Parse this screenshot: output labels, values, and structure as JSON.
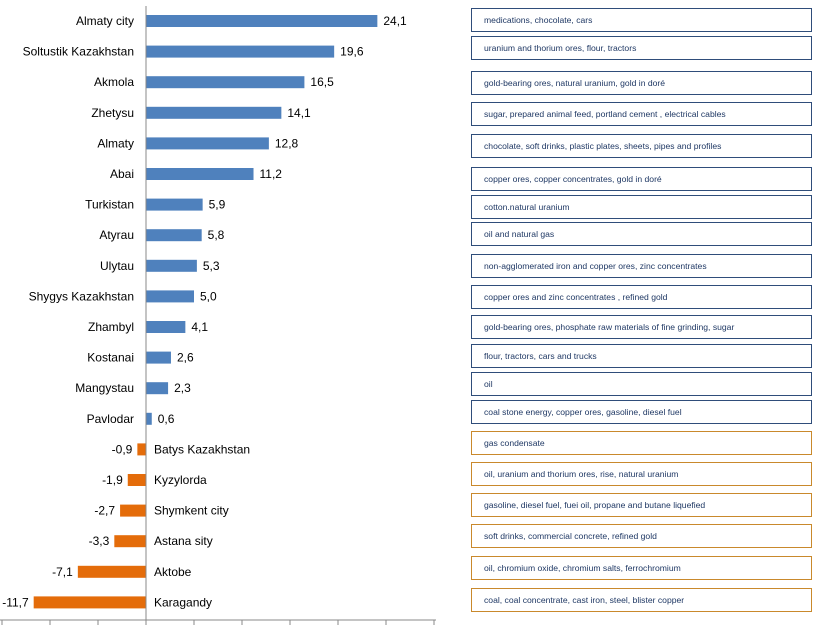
{
  "chart_data": {
    "type": "bar",
    "orientation": "horizontal",
    "categories": [
      "Almaty city",
      "Soltustik Kazakhstan",
      "Akmola",
      "Zhetysu",
      "Almaty",
      "Abai",
      "Turkistan",
      "Atyrau",
      "Ulytau",
      "Shygys Kazakhstan",
      "Zhambyl",
      "Kostanai",
      "Mangystau",
      "Pavlodar",
      "Batys Kazakhstan",
      "Kyzylorda",
      "Shymkent city",
      "Astana sity",
      "Aktobe",
      "Karagandy"
    ],
    "values": [
      24.1,
      19.6,
      16.5,
      14.1,
      12.8,
      11.2,
      5.9,
      5.8,
      5.3,
      5.0,
      4.1,
      2.6,
      2.3,
      0.6,
      -0.9,
      -1.9,
      -2.7,
      -3.3,
      -7.1,
      -11.7
    ],
    "value_labels": [
      "24,1",
      "19,6",
      "16,5",
      "14,1",
      "12,8",
      "11,2",
      "5,9",
      "5,8",
      "5,3",
      "5,0",
      "4,1",
      "2,6",
      "2,3",
      "0,6",
      "-0,9",
      "-1,9",
      "-2,7",
      "-3,3",
      "-7,1",
      "-11,7"
    ],
    "xlim": [
      -12,
      24.1
    ],
    "colors": {
      "positive": "#4f81bd",
      "negative": "#e46c0a"
    },
    "grid": false,
    "legend": "none"
  },
  "descriptions": [
    "medications, chocolate, cars",
    "uranium and thorium ores, flour, tractors",
    "gold-bearing ores, natural uranium, gold in doré",
    "sugar, prepared animal feed, portland cement , electrical cables",
    "chocolate, soft drinks,  plastic plates, sheets, pipes and profiles",
    "copper ores, copper concentrates, gold in doré",
    "cotton.natural uranium",
    "oil and natural gas",
    "non-agglomerated iron and copper ores, zinc concentrates",
    "copper ores and zinc concentrates , refined gold",
    "gold-bearing ores, phosphate raw materials of fine grinding, sugar",
    "flour, tractors, cars and trucks",
    "oil",
    "coal stone energy, copper ores, gasoline, diesel fuel",
    "gas condensate",
    "oil, uranium and thorium ores, rise, natural uranium",
    "gasoline, diesel fuel, fuei oil,  propane and butane liquefied",
    "soft drinks, commercial concrete, refined gold",
    "oil, chromium oxide, chromium  salts, ferrochromium",
    "coal, coal concentrate, cast iron, steel, blister copper"
  ]
}
